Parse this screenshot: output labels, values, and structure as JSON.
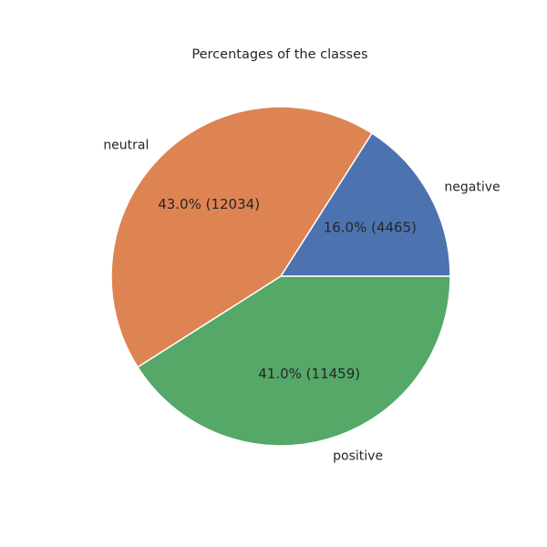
{
  "chart_data": {
    "type": "pie",
    "title": "Percentages of the classes",
    "slices": [
      {
        "label": "negative",
        "value": 4465,
        "percent_label": "16.0% (4465)",
        "color": "#4c72b0"
      },
      {
        "label": "neutral",
        "value": 12034,
        "percent_label": "43.0% (12034)",
        "color": "#dd8452"
      },
      {
        "label": "positive",
        "value": 11459,
        "percent_label": "41.0% (11459)",
        "color": "#55a868"
      }
    ],
    "start_angle": 0,
    "direction": "counterclockwise",
    "wedge_edge_color": "#ffffff",
    "legend": "none"
  }
}
